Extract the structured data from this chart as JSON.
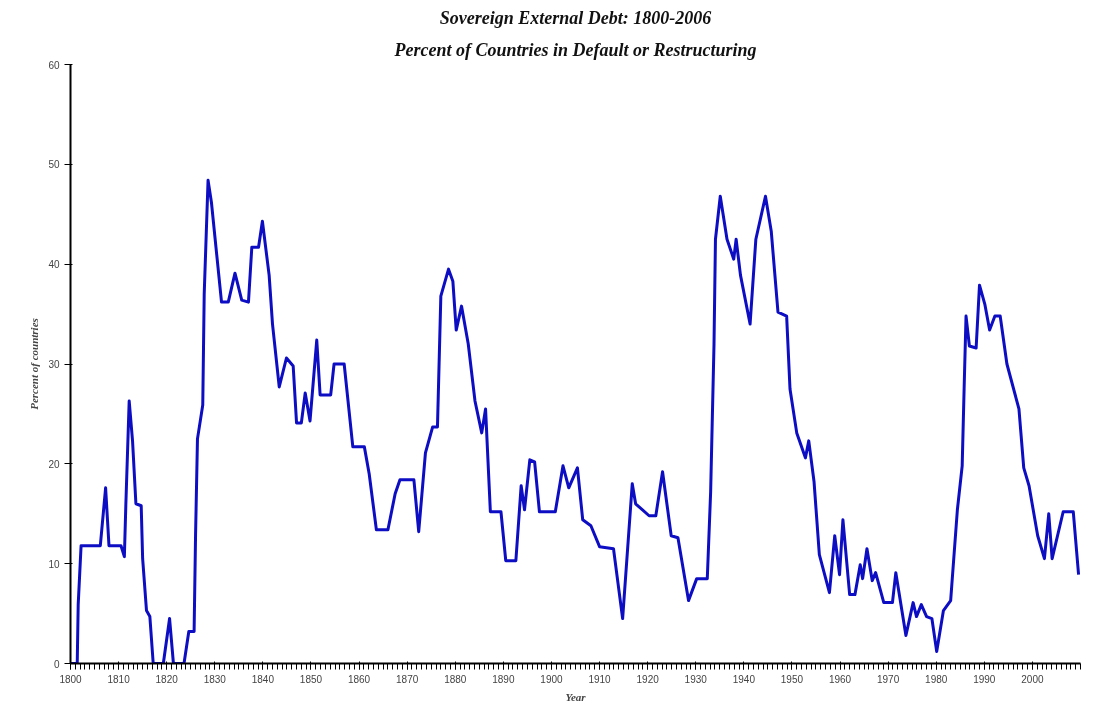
{
  "chart_data": {
    "type": "line",
    "title": "Sovereign External Debt: 1800-2006",
    "subtitle": "Percent of Countries in Default or Restructuring",
    "xlabel": "Year",
    "ylabel": "Percent of countries",
    "xlim": [
      1800,
      2010
    ],
    "xticks": [
      1800,
      1810,
      1820,
      1830,
      1840,
      1850,
      1860,
      1870,
      1880,
      1890,
      1900,
      1910,
      1920,
      1930,
      1940,
      1950,
      1960,
      1970,
      1980,
      1990,
      2000
    ],
    "ylim": [
      0,
      60
    ],
    "yticks": [
      0,
      10,
      20,
      30,
      40,
      50,
      60
    ],
    "grid": false,
    "marker": "none",
    "line_style": "solid",
    "series": [
      {
        "color": "#0d0dc4",
        "x": [
          1800,
          1801.4,
          1801.6,
          1802.2,
          1806.2,
          1807.3,
          1808,
          1810.5,
          1811.2,
          1811.5,
          1812.2,
          1812.9,
          1813.6,
          1814.7,
          1815,
          1815.8,
          1816.5,
          1817.2,
          1819.3,
          1820.6,
          1821.4,
          1823.6,
          1824.6,
          1825.7,
          1826,
          1826.4,
          1827.5,
          1827.8,
          1828.6,
          1829.3,
          1831.4,
          1832.8,
          1834.2,
          1835.6,
          1837,
          1837.7,
          1839.1,
          1839.9,
          1841.3,
          1842,
          1843.4,
          1844.9,
          1846.3,
          1847,
          1848,
          1848.8,
          1849.8,
          1851.2,
          1851.9,
          1854.1,
          1854.8,
          1856.9,
          1858.7,
          1861.1,
          1862.1,
          1863.6,
          1866,
          1867.5,
          1868.5,
          1871.4,
          1872.4,
          1873.8,
          1875.3,
          1876.3,
          1877,
          1878.6,
          1879.5,
          1880.2,
          1881.3,
          1882.7,
          1884.1,
          1885.5,
          1886.3,
          1887.3,
          1889.5,
          1890.5,
          1892.6,
          1893.7,
          1894.4,
          1895.5,
          1896.5,
          1897.5,
          1900.8,
          1902.4,
          1903.6,
          1905.4,
          1906.5,
          1908.2,
          1910,
          1912.9,
          1914.8,
          1916.8,
          1917.5,
          1920.3,
          1921.7,
          1923.1,
          1924.9,
          1926.3,
          1928.5,
          1930.2,
          1932.4,
          1933.1,
          1933.8,
          1934.1,
          1935.1,
          1936.5,
          1937.9,
          1938.4,
          1939.3,
          1941.3,
          1942.5,
          1944.5,
          1945.7,
          1947.1,
          1948.9,
          1949.6,
          1951,
          1952.8,
          1953.5,
          1954.6,
          1955.7,
          1957.8,
          1958.9,
          1959.9,
          1960.6,
          1962,
          1963.1,
          1964.2,
          1964.7,
          1965.6,
          1966.7,
          1967.4,
          1969.1,
          1970.9,
          1971.6,
          1973.7,
          1975.2,
          1975.9,
          1976.9,
          1978,
          1979.1,
          1980.1,
          1981.5,
          1983,
          1984.4,
          1985.4,
          1985.8,
          1986.2,
          1986.9,
          1988.3,
          1989,
          1990.1,
          1991.1,
          1992.2,
          1993.3,
          1994.7,
          1997.2,
          1998.2,
          1999.3,
          2001.1,
          2002.5,
          2003.4,
          2004.1,
          2006.4,
          2008.5,
          2009.6
        ],
        "values": [
          0,
          0,
          5.9,
          11.8,
          11.8,
          17.6,
          11.8,
          11.8,
          10.7,
          15.8,
          26.3,
          22.3,
          16,
          15.8,
          10.5,
          5.3,
          4.7,
          0,
          0,
          4.5,
          0,
          0,
          3.2,
          3.2,
          12.8,
          22.5,
          25.9,
          37,
          48.4,
          46.2,
          36.2,
          36.2,
          39.1,
          36.4,
          36.2,
          41.7,
          41.7,
          44.3,
          38.9,
          34,
          27.7,
          30.6,
          29.8,
          24.1,
          24.1,
          27.1,
          24.3,
          32.4,
          26.9,
          26.9,
          30,
          30,
          21.7,
          21.7,
          19,
          13.4,
          13.4,
          17,
          18.4,
          18.4,
          13.2,
          21.1,
          23.7,
          23.7,
          36.8,
          39.5,
          38.3,
          33.4,
          35.8,
          32,
          26.3,
          23.1,
          25.5,
          15.2,
          15.2,
          10.3,
          10.3,
          17.8,
          15.4,
          20.4,
          20.2,
          15.2,
          15.2,
          19.8,
          17.6,
          19.6,
          14.4,
          13.8,
          11.7,
          11.5,
          4.5,
          18,
          16,
          14.8,
          14.8,
          19.2,
          12.8,
          12.6,
          6.3,
          8.5,
          8.5,
          17.2,
          32,
          42.5,
          46.8,
          42.5,
          40.5,
          42.5,
          38.9,
          34,
          42.5,
          46.8,
          43.3,
          35.2,
          34.8,
          27.5,
          23.1,
          20.6,
          22.3,
          18.2,
          10.9,
          7.1,
          12.8,
          8.9,
          14.4,
          6.9,
          6.9,
          9.9,
          8.5,
          11.5,
          8.3,
          9.1,
          6.1,
          6.1,
          9.1,
          2.8,
          6.1,
          4.7,
          5.9,
          4.7,
          4.5,
          1.2,
          5.3,
          6.3,
          15.4,
          19.8,
          27.5,
          34.8,
          31.8,
          31.6,
          37.9,
          36,
          33.4,
          34.8,
          34.8,
          30,
          25.5,
          19.6,
          17.8,
          12.8,
          10.5,
          15,
          10.5,
          15.2,
          15.2,
          8.9
        ]
      }
    ]
  }
}
